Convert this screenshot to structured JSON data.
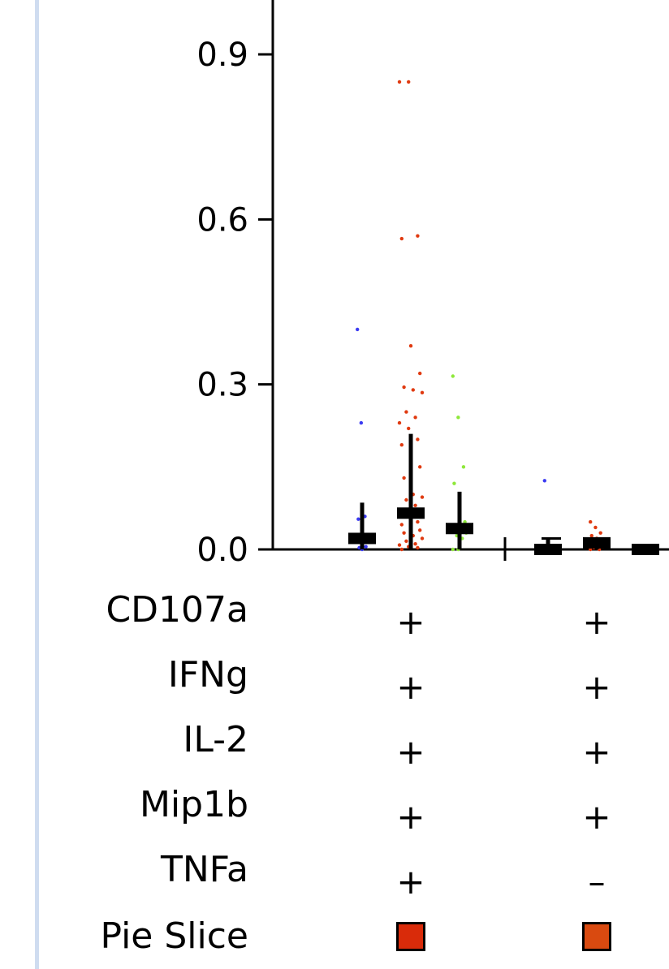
{
  "chart_data": {
    "type": "scatter",
    "title": "",
    "xlabel": "",
    "ylabel": "",
    "ylim": [
      0,
      1.0
    ],
    "yticks": [
      "0.0",
      "0.3",
      "0.6",
      "0.9"
    ],
    "grid": false,
    "groups": [
      {
        "name": "",
        "series": [
          {
            "color": "#3b3bf2",
            "median": 0.02,
            "whisker_high": 0.085,
            "values": [
              0.4,
              0.23,
              0.06,
              0.055,
              0.0,
              0.005,
              0.003
            ]
          },
          {
            "color": "#e03a10",
            "median": 0.066,
            "whisker_high": 0.21,
            "values": [
              0.85,
              0.85,
              0.57,
              0.565,
              0.37,
              0.32,
              0.295,
              0.29,
              0.285,
              0.25,
              0.24,
              0.23,
              0.22,
              0.2,
              0.19,
              0.16,
              0.15,
              0.13,
              0.1,
              0.095,
              0.09,
              0.08,
              0.07,
              0.06,
              0.05,
              0.045,
              0.04,
              0.035,
              0.03,
              0.025,
              0.02,
              0.015,
              0.01,
              0.008,
              0.005,
              0.003,
              0.0
            ]
          },
          {
            "color": "#8ee83a",
            "median": 0.038,
            "whisker_high": 0.105,
            "values": [
              0.315,
              0.24,
              0.15,
              0.12,
              0.06,
              0.05,
              0.04,
              0.035,
              0.03,
              0.025,
              0.02,
              0.0,
              0.0
            ]
          }
        ]
      },
      {
        "name": "",
        "series": [
          {
            "color": "#3b3bf2",
            "median": 0.0,
            "whisker_high": 0.02,
            "values": [
              0.125,
              0.0,
              0.0
            ]
          },
          {
            "color": "#e03a10",
            "median": 0.012,
            "whisker_high": 0.02,
            "values": [
              0.05,
              0.04,
              0.03,
              0.025,
              0.02,
              0.015,
              0.01,
              0.008,
              0.005,
              0.003,
              0.0,
              0.0
            ]
          },
          {
            "color": "#8ee83a",
            "median": 0.0,
            "whisker_high": 0.0,
            "values": [
              0.0,
              0.0
            ]
          }
        ]
      }
    ],
    "table_rows": [
      {
        "label": "CD107a",
        "values": [
          "+",
          "+"
        ]
      },
      {
        "label": "IFNg",
        "values": [
          "+",
          "+"
        ]
      },
      {
        "label": "IL-2",
        "values": [
          "+",
          "+"
        ]
      },
      {
        "label": "Mip1b",
        "values": [
          "+",
          "+"
        ]
      },
      {
        "label": "TNFa",
        "values": [
          "+",
          "–"
        ]
      }
    ],
    "pie_slice": {
      "label": "Pie Slice",
      "colors": [
        "#d92b0a",
        "#d94a10"
      ]
    }
  }
}
